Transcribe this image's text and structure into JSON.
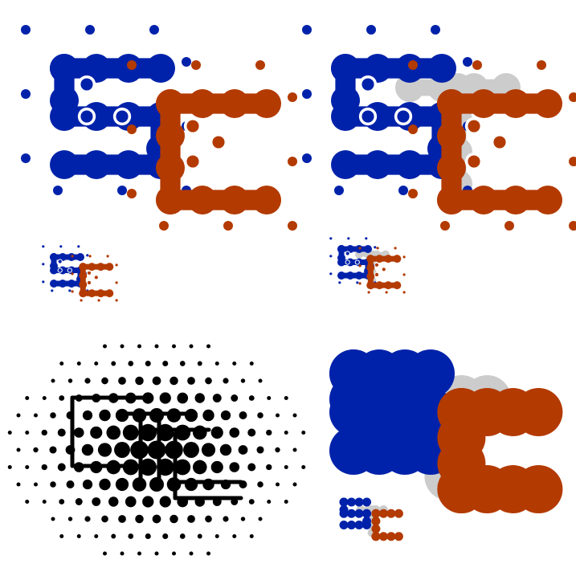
{
  "colors": {
    "background": "#ffffff",
    "blue": "#0022aa",
    "orange": "#b33a00",
    "gray": "#cccccc",
    "black": "#000000"
  },
  "logos": [
    {
      "name": "logo-sc-dots-color",
      "style": "dots",
      "palette": "color"
    },
    {
      "name": "logo-sct-dots-color",
      "style": "dots",
      "palette": "color"
    },
    {
      "name": "logo-sct-dots-black",
      "style": "dots",
      "palette": "black"
    },
    {
      "name": "logo-sct-solid-color",
      "style": "solid",
      "palette": "color"
    }
  ]
}
